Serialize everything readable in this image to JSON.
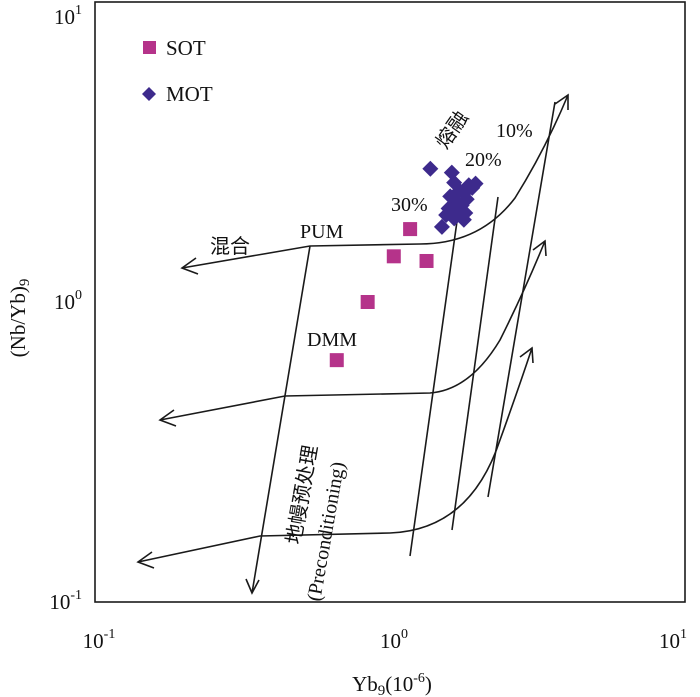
{
  "chart_data": {
    "type": "scatter",
    "xlabel_main": "Yb",
    "xlabel_sub": "9",
    "xlabel_unit": "(10",
    "xlabel_unit_sup": "-6",
    "xlabel_unit_end": ")",
    "ylabel_main": "(Nb/Yb)",
    "ylabel_sub": "9",
    "x_scale": "log",
    "y_scale": "log",
    "xlim": [
      0.1,
      10
    ],
    "ylim": [
      0.1,
      10
    ],
    "grid": false,
    "legend_position": "top-left",
    "x_ticks": [
      {
        "value": 0.1,
        "base": "10",
        "exp": "-1"
      },
      {
        "value": 1,
        "base": "10",
        "exp": "0"
      },
      {
        "value": 10,
        "base": "10",
        "exp": "1"
      }
    ],
    "y_ticks": [
      {
        "value": 0.1,
        "base": "10",
        "exp": "-1"
      },
      {
        "value": 1,
        "base": "10",
        "exp": "0"
      },
      {
        "value": 10,
        "base": "10",
        "exp": "1"
      }
    ],
    "series": [
      {
        "name": "SOT",
        "marker": "square",
        "color": "#b5338a",
        "points": [
          {
            "x": 0.66,
            "y": 0.64
          },
          {
            "x": 0.84,
            "y": 1.0
          },
          {
            "x": 1.03,
            "y": 1.42
          },
          {
            "x": 1.17,
            "y": 1.75
          },
          {
            "x": 1.33,
            "y": 1.37
          }
        ]
      },
      {
        "name": "MOT",
        "marker": "diamond",
        "color": "#3d2a8c",
        "points": [
          {
            "x": 1.37,
            "y": 2.78
          },
          {
            "x": 1.62,
            "y": 2.7
          },
          {
            "x": 1.65,
            "y": 2.5
          },
          {
            "x": 1.72,
            "y": 2.35
          },
          {
            "x": 1.78,
            "y": 2.3
          },
          {
            "x": 1.85,
            "y": 2.45
          },
          {
            "x": 1.9,
            "y": 2.4
          },
          {
            "x": 1.95,
            "y": 2.48
          },
          {
            "x": 1.6,
            "y": 2.25
          },
          {
            "x": 1.68,
            "y": 2.15
          },
          {
            "x": 1.75,
            "y": 2.1
          },
          {
            "x": 1.82,
            "y": 2.2
          },
          {
            "x": 1.58,
            "y": 2.05
          },
          {
            "x": 1.62,
            "y": 2.02
          },
          {
            "x": 1.7,
            "y": 2.0
          },
          {
            "x": 1.55,
            "y": 1.95
          },
          {
            "x": 1.65,
            "y": 1.9
          },
          {
            "x": 1.78,
            "y": 1.88
          },
          {
            "x": 1.5,
            "y": 1.78
          },
          {
            "x": 1.8,
            "y": 1.98
          }
        ]
      }
    ],
    "annotations": {
      "pum": "PUM",
      "dmm": "DMM",
      "mixing": "混合",
      "melting": "熔融",
      "pct_10": "10%",
      "pct_20": "20%",
      "pct_30": "30%",
      "preconditioning_cn": "地幔预处理",
      "preconditioning_en": "(Preconditioning)"
    }
  }
}
